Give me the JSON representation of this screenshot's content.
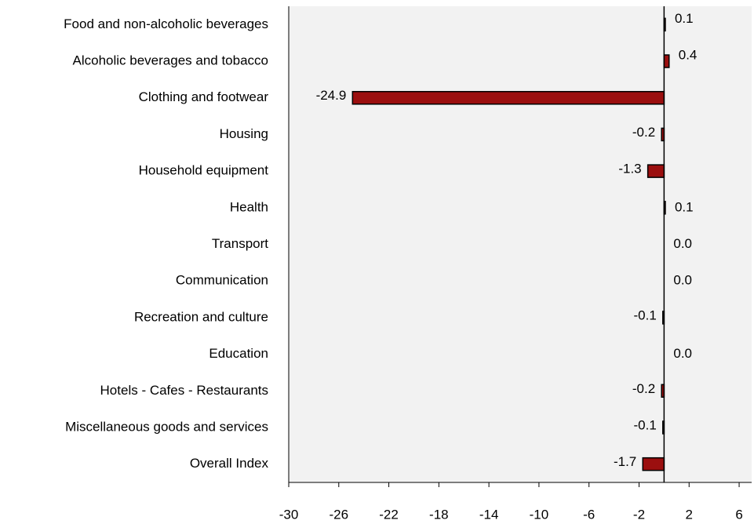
{
  "chart_data": {
    "type": "bar",
    "orientation": "horizontal",
    "categories": [
      "Food and non-alcoholic beverages",
      "Alcoholic beverages and tobacco",
      "Clothing and footwear",
      "Housing",
      "Household equipment",
      "Health",
      "Transport",
      "Communication",
      "Recreation and culture",
      "Education",
      "Hotels - Cafes - Restaurants",
      "Miscellaneous goods and services",
      "Overall Index"
    ],
    "values": [
      0.1,
      0.4,
      -24.9,
      -0.2,
      -1.3,
      0.1,
      0.0,
      0.0,
      -0.1,
      0.0,
      -0.2,
      -0.1,
      -1.7
    ],
    "value_labels": [
      "0.1",
      "0.4",
      "-24.9",
      "-0.2",
      "-1.3",
      "0.1",
      "0.0",
      "0.0",
      "-0.1",
      "0.0",
      "-0.2",
      "-0.1",
      "-1.7"
    ],
    "color": "#9b0f0f",
    "xlim": [
      -30,
      7
    ],
    "xticks": [
      -30,
      -26,
      -22,
      -18,
      -14,
      -10,
      -6,
      -2,
      2,
      6
    ]
  }
}
